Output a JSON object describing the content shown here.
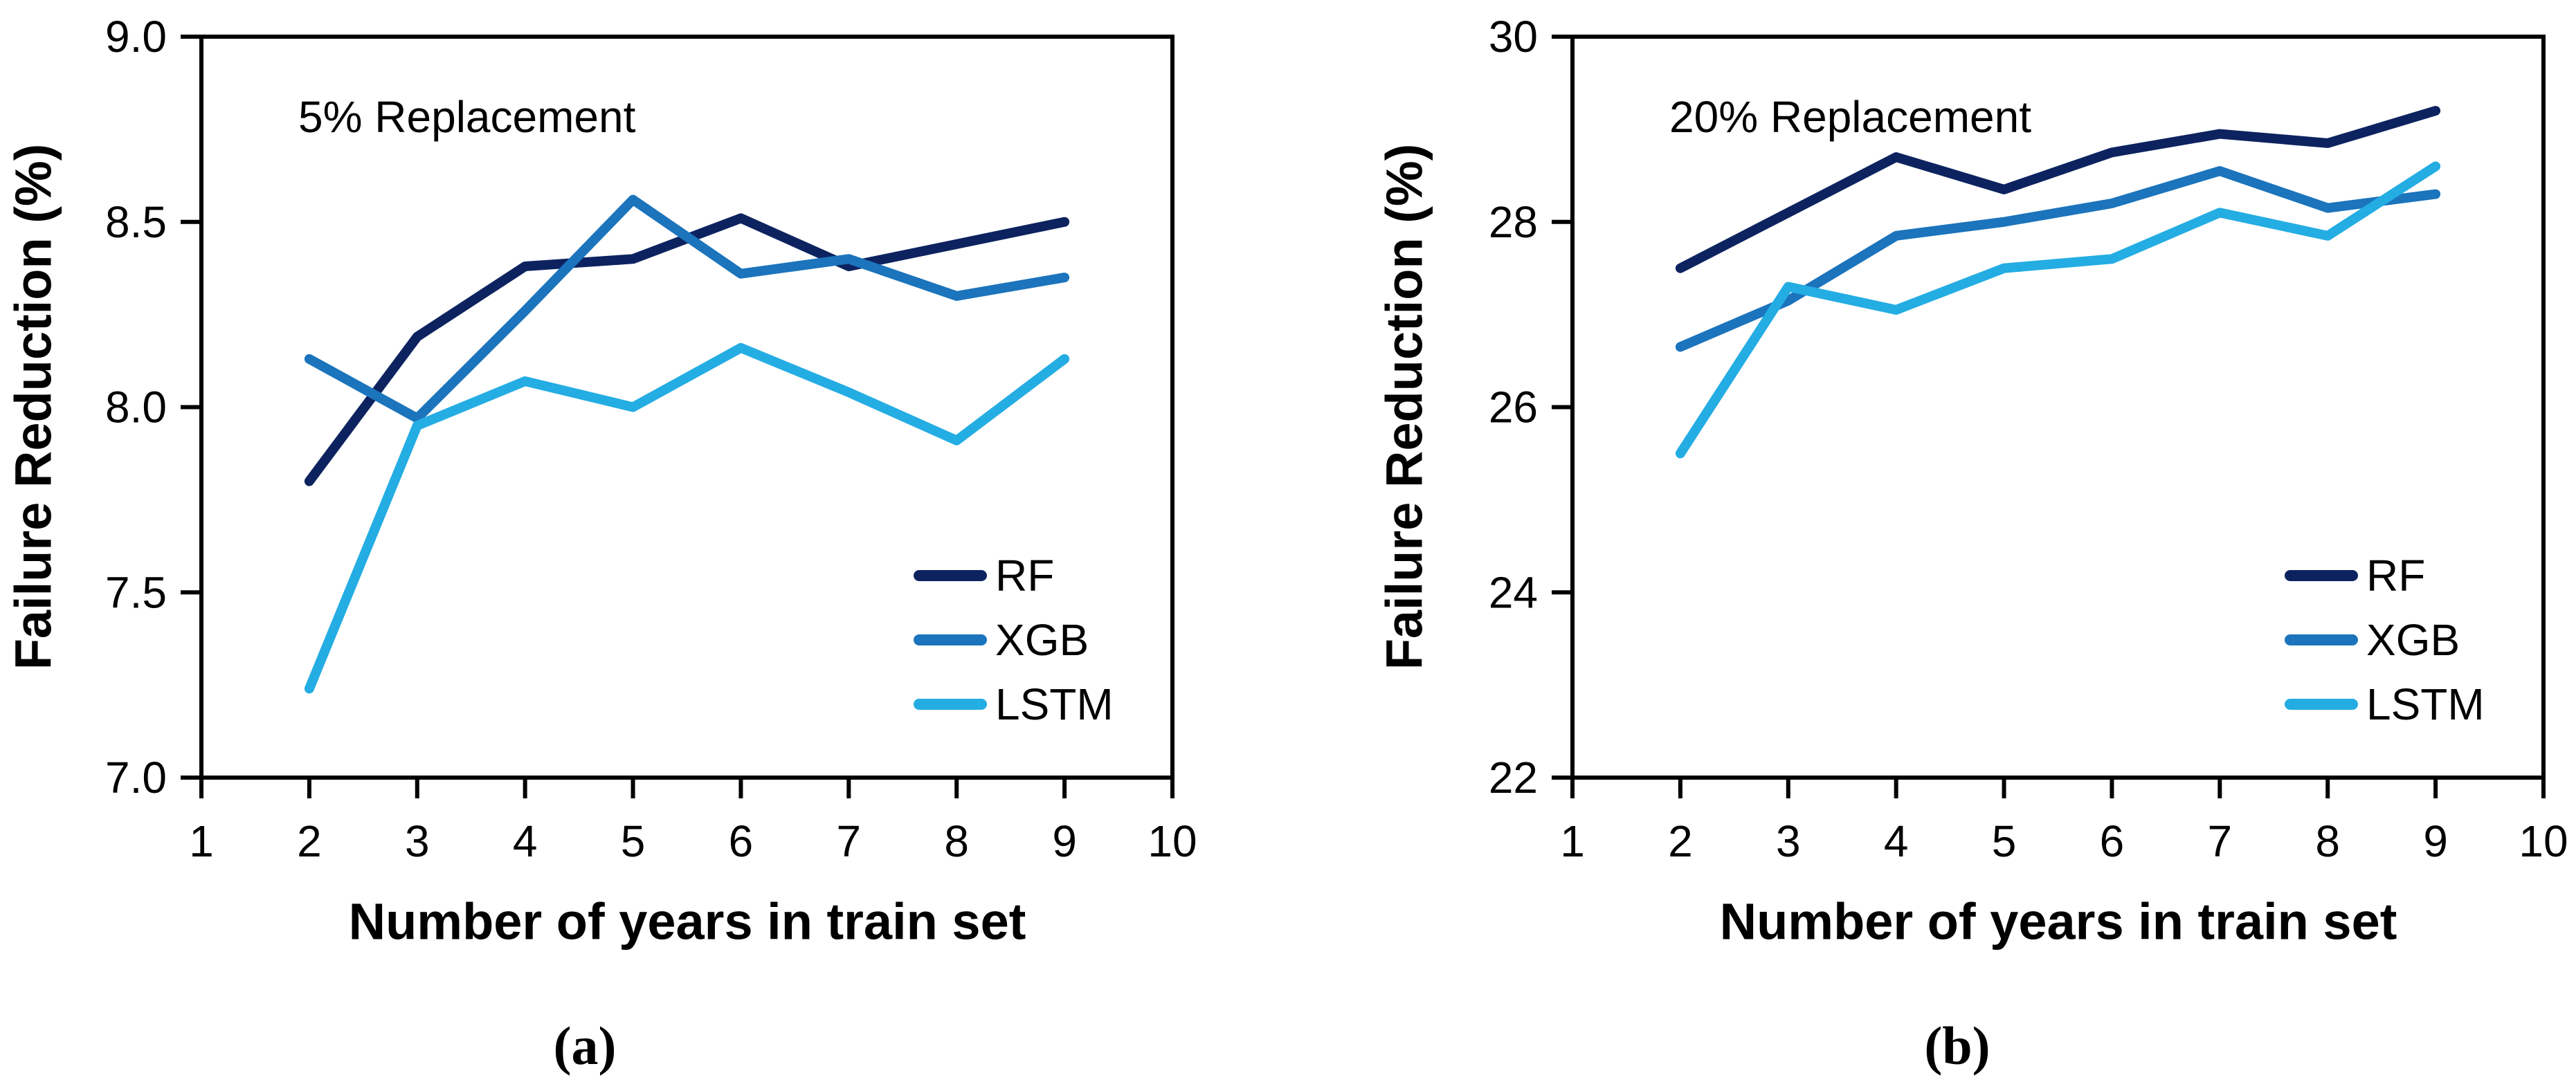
{
  "figure": {
    "background": "#ffffff",
    "text_color": "#000000",
    "captions": [
      {
        "label": "(a)"
      },
      {
        "label": "(b)"
      }
    ]
  },
  "chart_data": [
    {
      "type": "line",
      "annotation": "5% Replacement",
      "xlabel": "Number of years in train set",
      "ylabel": "Failure Reduction (%)",
      "xlim": [
        1,
        10
      ],
      "ylim": [
        7.0,
        9.0
      ],
      "xticks": [
        1,
        2,
        3,
        4,
        5,
        6,
        7,
        8,
        9,
        10
      ],
      "yticks": [
        7.0,
        7.5,
        8.0,
        8.5,
        9.0
      ],
      "ytick_labels": [
        "7.0",
        "7.5",
        "8.0",
        "8.5",
        "9.0"
      ],
      "grid": false,
      "legend_position": "lower right",
      "x": [
        2,
        3,
        4,
        5,
        6,
        7,
        8,
        9
      ],
      "series": [
        {
          "name": "RF",
          "color": "#0d2360",
          "values": [
            7.8,
            8.19,
            8.38,
            8.4,
            8.51,
            8.38,
            8.44,
            8.5
          ]
        },
        {
          "name": "XGB",
          "color": "#1b74bc",
          "values": [
            8.13,
            7.97,
            8.26,
            8.56,
            8.36,
            8.4,
            8.3,
            8.35
          ]
        },
        {
          "name": "LSTM",
          "color": "#24ade3",
          "values": [
            7.24,
            7.95,
            8.07,
            8.0,
            8.16,
            8.04,
            7.91,
            8.13
          ]
        }
      ]
    },
    {
      "type": "line",
      "annotation": "20% Replacement",
      "xlabel": "Number of years in train set",
      "ylabel": "Failure Reduction (%)",
      "xlim": [
        1,
        10
      ],
      "ylim": [
        22,
        30
      ],
      "xticks": [
        1,
        2,
        3,
        4,
        5,
        6,
        7,
        8,
        9,
        10
      ],
      "yticks": [
        22,
        24,
        26,
        28,
        30
      ],
      "ytick_labels": [
        "22",
        "24",
        "26",
        "28",
        "30"
      ],
      "grid": false,
      "legend_position": "lower right",
      "x": [
        2,
        3,
        4,
        5,
        6,
        7,
        8,
        9
      ],
      "series": [
        {
          "name": "RF",
          "color": "#0d2360",
          "values": [
            27.5,
            28.1,
            28.7,
            28.35,
            28.75,
            28.95,
            28.85,
            29.2
          ]
        },
        {
          "name": "XGB",
          "color": "#1b74bc",
          "values": [
            26.65,
            27.15,
            27.85,
            28.0,
            28.2,
            28.55,
            28.15,
            28.3
          ]
        },
        {
          "name": "LSTM",
          "color": "#24ade3",
          "values": [
            25.5,
            27.3,
            27.05,
            27.5,
            27.6,
            28.1,
            27.85,
            28.6
          ]
        }
      ]
    }
  ]
}
